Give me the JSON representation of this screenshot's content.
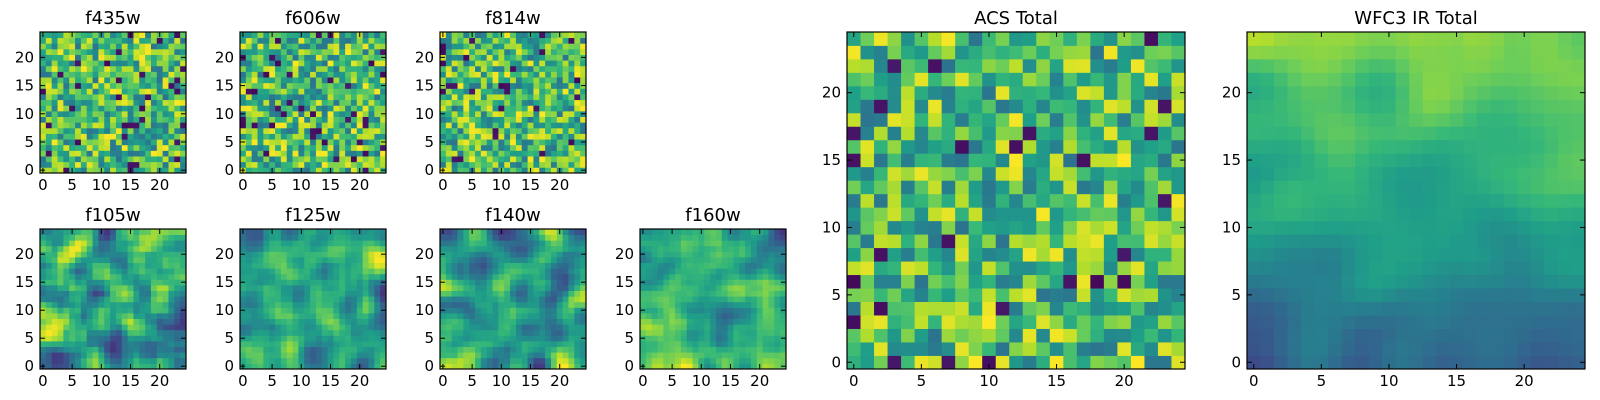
{
  "chart_data": [
    {
      "type": "heatmap",
      "title": "f435w",
      "xlim": [
        0,
        24
      ],
      "ylim": [
        0,
        24
      ],
      "xticks": [
        "0",
        "5",
        "10",
        "15",
        "20"
      ],
      "yticks": [
        "0",
        "5",
        "10",
        "15",
        "20"
      ],
      "pattern": "noise",
      "colormap": "viridis"
    },
    {
      "type": "heatmap",
      "title": "f606w",
      "xlim": [
        0,
        24
      ],
      "ylim": [
        0,
        24
      ],
      "xticks": [
        "0",
        "5",
        "10",
        "15",
        "20"
      ],
      "yticks": [
        "0",
        "5",
        "10",
        "15",
        "20"
      ],
      "pattern": "noise",
      "colormap": "viridis"
    },
    {
      "type": "heatmap",
      "title": "f814w",
      "xlim": [
        0,
        24
      ],
      "ylim": [
        0,
        24
      ],
      "xticks": [
        "0",
        "5",
        "10",
        "15",
        "20"
      ],
      "yticks": [
        "0",
        "5",
        "10",
        "15",
        "20"
      ],
      "pattern": "noise",
      "colormap": "viridis"
    },
    {
      "type": "heatmap",
      "title": "f105w",
      "xlim": [
        0,
        24
      ],
      "ylim": [
        0,
        24
      ],
      "xticks": [
        "0",
        "5",
        "10",
        "15",
        "20"
      ],
      "yticks": [
        "0",
        "5",
        "10",
        "15",
        "20"
      ],
      "pattern": "smooth",
      "colormap": "viridis"
    },
    {
      "type": "heatmap",
      "title": "f125w",
      "xlim": [
        0,
        24
      ],
      "ylim": [
        0,
        24
      ],
      "xticks": [
        "0",
        "5",
        "10",
        "15",
        "20"
      ],
      "yticks": [
        "0",
        "5",
        "10",
        "15",
        "20"
      ],
      "pattern": "smooth",
      "colormap": "viridis"
    },
    {
      "type": "heatmap",
      "title": "f140w",
      "xlim": [
        0,
        24
      ],
      "ylim": [
        0,
        24
      ],
      "xticks": [
        "0",
        "5",
        "10",
        "15",
        "20"
      ],
      "yticks": [
        "0",
        "5",
        "10",
        "15",
        "20"
      ],
      "pattern": "smooth",
      "colormap": "viridis"
    },
    {
      "type": "heatmap",
      "title": "f160w",
      "xlim": [
        0,
        24
      ],
      "ylim": [
        0,
        24
      ],
      "xticks": [
        "0",
        "5",
        "10",
        "15",
        "20"
      ],
      "yticks": [
        "0",
        "5",
        "10",
        "15",
        "20"
      ],
      "pattern": "smooth",
      "colormap": "viridis"
    },
    {
      "type": "heatmap",
      "title": "ACS Total",
      "xlim": [
        0,
        24
      ],
      "ylim": [
        0,
        24
      ],
      "xticks": [
        "0",
        "5",
        "10",
        "15",
        "20"
      ],
      "yticks": [
        "0",
        "5",
        "10",
        "15",
        "20"
      ],
      "pattern": "noise",
      "colormap": "viridis"
    },
    {
      "type": "heatmap",
      "title": "WFC3 IR Total",
      "xlim": [
        0,
        24
      ],
      "ylim": [
        0,
        24
      ],
      "xticks": [
        "0",
        "5",
        "10",
        "15",
        "20"
      ],
      "yticks": [
        "0",
        "5",
        "10",
        "15",
        "20"
      ],
      "pattern": "gradient",
      "colormap": "viridis"
    }
  ]
}
